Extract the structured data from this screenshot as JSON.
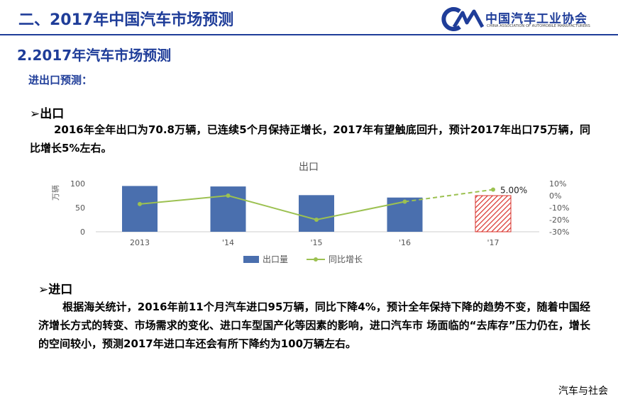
{
  "header": {
    "title": "二、2017年中国汽车市场预测",
    "logo_cn": "中国汽车工业协会",
    "logo_en": "CHINA ASSOCIATION OF AUTOMOBILE MANUFACTURERS"
  },
  "section": {
    "title": "2.2017年汽车市场预测",
    "subtitle": "进出口预测："
  },
  "export_block": {
    "bullet": "➢",
    "heading": "出口",
    "text": "2016年全年出口为70.8万辆，已连续5个月保持正增长，2017年有望触底回升，预计2017年出口75万辆，同比增长5%左右。"
  },
  "import_block": {
    "bullet": "➢",
    "heading": "进口",
    "text": "根据海关统计，2016年前11个月汽车进口95万辆，同比下降4%，预计全年保持下降的趋势不变，随着中国经济增长方式的转变、市场需求的变化、进口车型国产化等因素的影响，进口汽车市 场面临的“去库存”压力仍在，增长的空间较小，预测2017年进口车还会有所下降约为100万辆左右。"
  },
  "chart_data": {
    "type": "bar",
    "title": "出口",
    "ylabel": "万辆",
    "categories": [
      "2013",
      "'14",
      "'15",
      "'16",
      "'17"
    ],
    "ylim": [
      0,
      100
    ],
    "yticks": [
      0,
      50,
      100
    ],
    "y2lim": [
      -30,
      10
    ],
    "y2ticks": [
      "10%",
      "0%",
      "-10%",
      "-20%",
      "-30%"
    ],
    "series": [
      {
        "name": "出口量",
        "values": [
          95,
          94,
          76,
          71,
          75
        ],
        "color": "#4a6fae",
        "forecast_index": 4,
        "forecast_color": "#d9302a"
      },
      {
        "name": "同比增长",
        "values": [
          -7,
          0,
          -20,
          -5,
          5
        ],
        "color": "#9cc151",
        "forecast_from_index": 3
      }
    ],
    "annotation": {
      "index": 4,
      "text": "5.00%"
    },
    "legend_position": "bottom",
    "grid": false
  },
  "watermark": "汽车与社会"
}
